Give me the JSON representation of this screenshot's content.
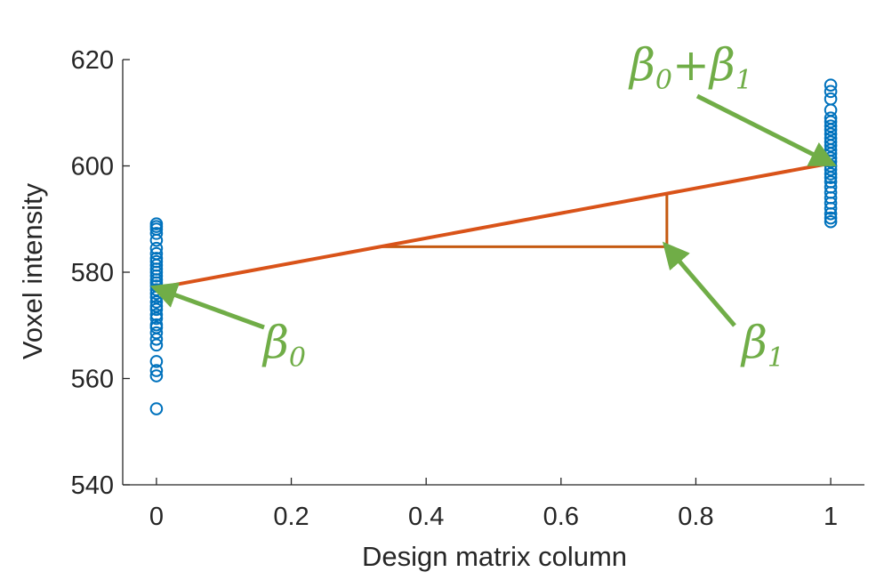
{
  "chart_data": {
    "type": "scatter",
    "xlabel": "Design matrix column",
    "ylabel": "Voxel intensity",
    "xlim": [
      -0.05,
      1.05
    ],
    "ylim": [
      540,
      620
    ],
    "xticks": [
      0,
      0.2,
      0.4,
      0.6,
      0.8,
      1
    ],
    "yticks": [
      540,
      560,
      580,
      600,
      620
    ],
    "xtick_labels": [
      "0",
      "0.2",
      "0.4",
      "0.6",
      "0.8",
      "1"
    ],
    "ytick_labels": [
      "540",
      "560",
      "580",
      "600",
      "620"
    ],
    "grid": false,
    "series": [
      {
        "marker": "open-circle",
        "color": "#0072bd",
        "points": [
          [
            0,
            554.3
          ],
          [
            0,
            560.5
          ],
          [
            0,
            561.5
          ],
          [
            0,
            563.2
          ],
          [
            0,
            566.3
          ],
          [
            0,
            567.4
          ],
          [
            0,
            568.6
          ],
          [
            0,
            569.6
          ],
          [
            0,
            570.1
          ],
          [
            0,
            571.3
          ],
          [
            0,
            572.0
          ],
          [
            0,
            573.0
          ],
          [
            0,
            573.6
          ],
          [
            0,
            574.4
          ],
          [
            0,
            575.3
          ],
          [
            0,
            576.0
          ],
          [
            0,
            576.7
          ],
          [
            0,
            577.4
          ],
          [
            0,
            578.0
          ],
          [
            0,
            578.6
          ],
          [
            0,
            579.3
          ],
          [
            0,
            580.0
          ],
          [
            0,
            580.6
          ],
          [
            0,
            581.3
          ],
          [
            0,
            582.0
          ],
          [
            0,
            582.6
          ],
          [
            0,
            583.5
          ],
          [
            0,
            584.5
          ],
          [
            0,
            586.0
          ],
          [
            0,
            587.3
          ],
          [
            0,
            588.1
          ],
          [
            0,
            588.6
          ],
          [
            0,
            589.1
          ],
          [
            1,
            589.5
          ],
          [
            1,
            590.2
          ],
          [
            1,
            591.0
          ],
          [
            1,
            592.0
          ],
          [
            1,
            593.0
          ],
          [
            1,
            594.0
          ],
          [
            1,
            595.0
          ],
          [
            1,
            596.0
          ],
          [
            1,
            597.0
          ],
          [
            1,
            597.8
          ],
          [
            1,
            598.5
          ],
          [
            1,
            599.3
          ],
          [
            1,
            600.0
          ],
          [
            1,
            600.8
          ],
          [
            1,
            601.5
          ],
          [
            1,
            602.3
          ],
          [
            1,
            603.0
          ],
          [
            1,
            603.8
          ],
          [
            1,
            604.5
          ],
          [
            1,
            605.2
          ],
          [
            1,
            606.0
          ],
          [
            1,
            606.8
          ],
          [
            1,
            607.5
          ],
          [
            1,
            608.3
          ],
          [
            1,
            609.0
          ],
          [
            1,
            610.5
          ],
          [
            1,
            612.6
          ],
          [
            1,
            614.0
          ],
          [
            1,
            615.2
          ]
        ]
      }
    ],
    "fit_line": {
      "x": [
        0,
        1
      ],
      "y": [
        577.0,
        600.5
      ],
      "color": "#d95319"
    },
    "slope_triangle": {
      "x0": 0.33,
      "x1": 0.757,
      "y_base": 584.8,
      "y_top": 594.8,
      "color": "#c55a11"
    },
    "annotations": [
      {
        "id": "beta0",
        "symbol": "β",
        "subscript": "0",
        "suffix": "",
        "arrow_to": [
          0,
          577.0
        ],
        "color": "#70ad47"
      },
      {
        "id": "beta1",
        "symbol": "β",
        "subscript": "1",
        "suffix": "",
        "arrow_to": [
          0.757,
          584.8
        ],
        "color": "#70ad47"
      },
      {
        "id": "beta01",
        "symbol": "β",
        "subscript": "0",
        "suffix": "+β",
        "subscript2": "1",
        "arrow_to": [
          1,
          600.5
        ],
        "color": "#70ad47"
      }
    ]
  }
}
